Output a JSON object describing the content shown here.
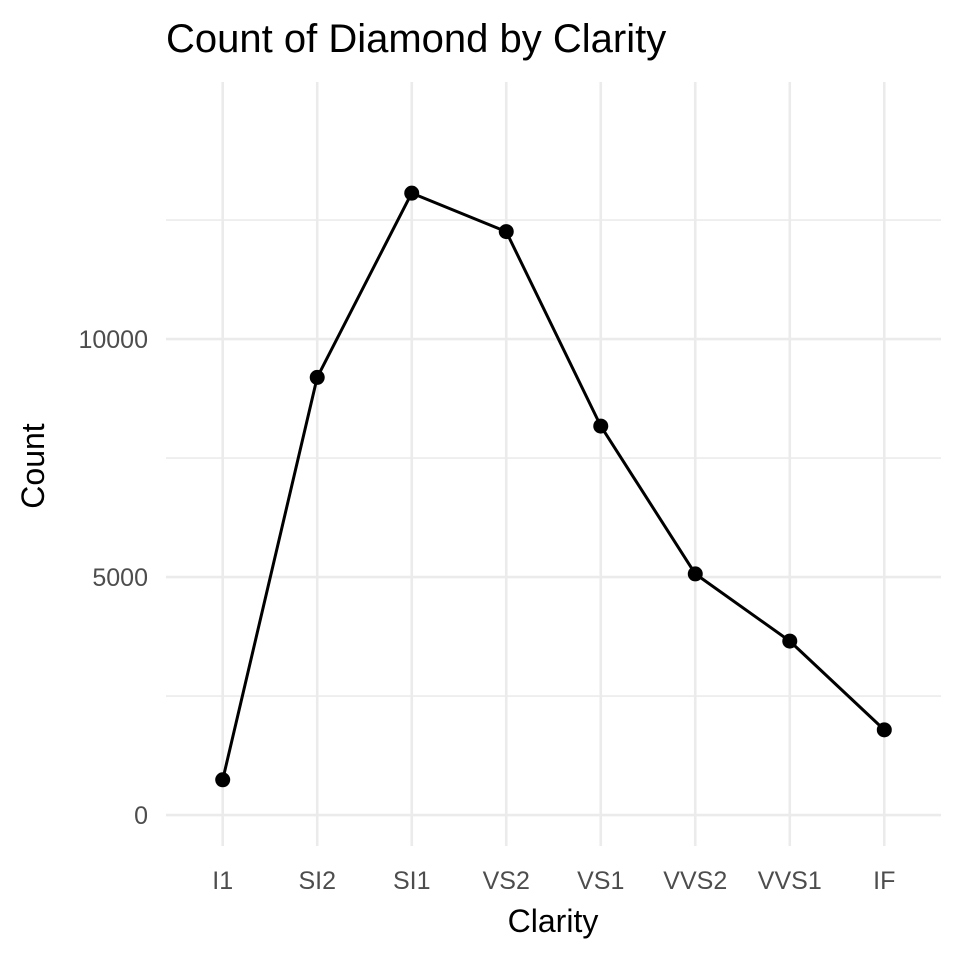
{
  "chart_data": {
    "type": "line",
    "title": "Count of Diamond by Clarity",
    "xlabel": "Clarity",
    "ylabel": "Count",
    "categories": [
      "I1",
      "SI2",
      "SI1",
      "VS2",
      "VS1",
      "VVS2",
      "VVS1",
      "IF"
    ],
    "values": [
      741,
      9194,
      13065,
      12258,
      8171,
      5066,
      3655,
      1790
    ],
    "ylim": [
      -650,
      15400
    ],
    "yticks": [
      0,
      5000,
      10000
    ],
    "yticks_minor": [
      2500,
      7500,
      12500
    ],
    "grid": true,
    "legend": "none",
    "markers": true,
    "colors": {
      "line": "#000000",
      "point": "#000000",
      "grid": "#ebebeb",
      "tick_text": "#4d4d4d",
      "background": "#ffffff"
    }
  }
}
